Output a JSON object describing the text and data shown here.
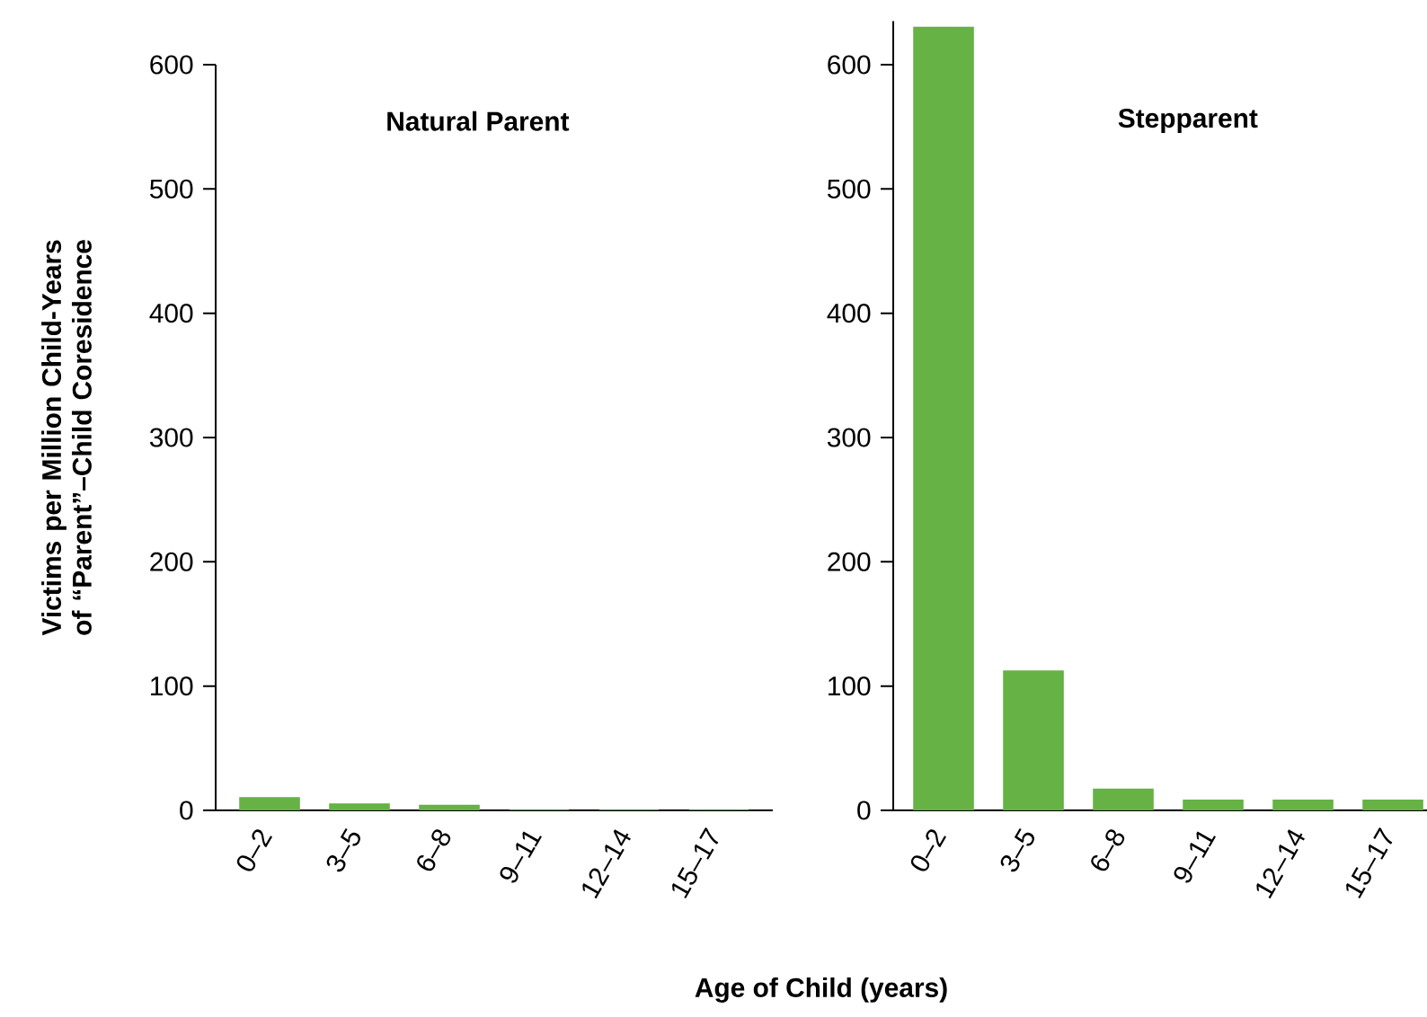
{
  "chart_data": [
    {
      "type": "bar",
      "title": "Natural Parent",
      "ylabel": "Victims per Million Child-Years of “Parent”–Child Coresidence",
      "xlabel": "Age of Child (years)",
      "categories": [
        "0–2",
        "3–5",
        "6–8",
        "9–11",
        "12–14",
        "15–17"
      ],
      "values": [
        10,
        5,
        4,
        0,
        0,
        0
      ],
      "color": "#66b245",
      "ylim": [
        0,
        600
      ],
      "yticks": [
        0,
        100,
        200,
        300,
        400,
        500,
        600
      ]
    },
    {
      "type": "bar",
      "title": "Stepparent",
      "categories": [
        "0–2",
        "3–5",
        "6–8",
        "9–11",
        "12–14",
        "15–17"
      ],
      "values": [
        630,
        112,
        17,
        8,
        8,
        8
      ],
      "color": "#66b245",
      "ylim": [
        0,
        635
      ],
      "yticks": [
        0,
        100,
        200,
        300,
        400,
        500,
        600
      ]
    }
  ]
}
